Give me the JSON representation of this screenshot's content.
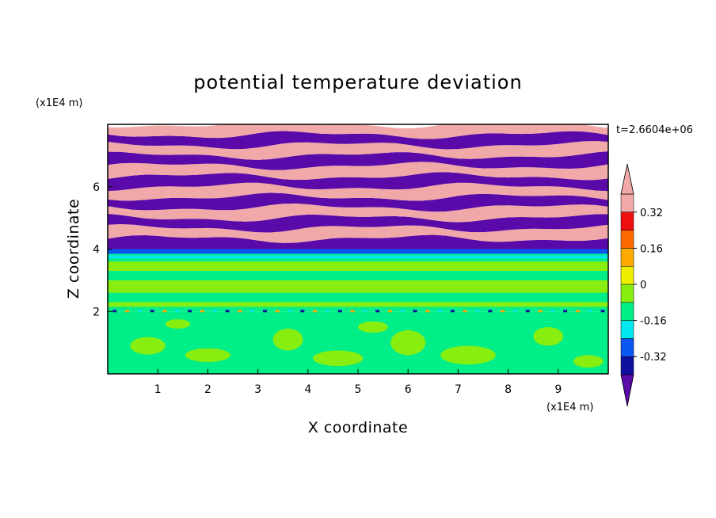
{
  "chart_data": {
    "type": "heatmap",
    "title": "potential temperature deviation",
    "xlabel": "X coordinate",
    "ylabel": "Z coordinate",
    "x_unit": "(x1E4 m)",
    "y_unit": "(x1E4 m)",
    "time_label": "t=2.6604e+06",
    "xlim": [
      0,
      10
    ],
    "ylim": [
      0,
      8
    ],
    "x_ticks": [
      "1",
      "2",
      "3",
      "4",
      "5",
      "6",
      "7",
      "8",
      "9"
    ],
    "y_ticks": [
      "2",
      "4",
      "6"
    ],
    "colorbar": {
      "levels": [
        -0.4,
        -0.32,
        -0.24,
        -0.16,
        -0.08,
        0,
        0.08,
        0.16,
        0.24,
        0.32,
        0.4
      ],
      "tick_labels": [
        "0.32",
        "0.16",
        "0",
        "-0.16",
        "-0.32"
      ],
      "colors": [
        "#5a0aa8",
        "#1010a0",
        "#0a56f0",
        "#00e8ee",
        "#00ee88",
        "#88ee10",
        "#f0ee00",
        "#ffaa00",
        "#ff6a00",
        "#ee1010",
        "#f0a8a8"
      ],
      "extend": "both"
    },
    "regions": {
      "lower_layer_z": [
        0,
        2.0
      ],
      "stratified_layer_z": [
        2.0,
        4.0
      ],
      "upper_bands_z": [
        4.0,
        8.0
      ],
      "upper_band_colors": [
        "#5a0aa8",
        "#f0a8a8"
      ]
    }
  }
}
